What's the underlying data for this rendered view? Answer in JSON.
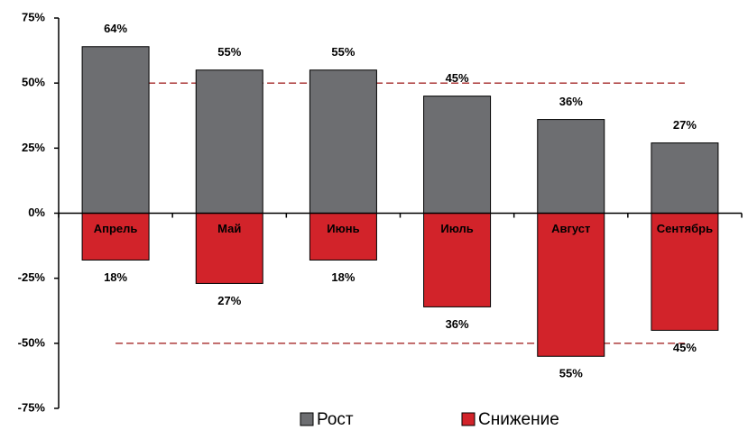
{
  "chart_data": {
    "type": "bar",
    "categories": [
      "Апрель",
      "Май",
      "Июнь",
      "Июль",
      "Август",
      "Сентябрь"
    ],
    "series": [
      {
        "name": "Рост",
        "color": "#6d6e71",
        "values": [
          64,
          55,
          55,
          45,
          36,
          27
        ],
        "value_labels": [
          "64%",
          "55%",
          "55%",
          "45%",
          "36%",
          "27%"
        ]
      },
      {
        "name": "Снижение",
        "color": "#d2232a",
        "values": [
          -18,
          -27,
          -18,
          -36,
          -55,
          -45
        ],
        "value_labels": [
          "18%",
          "27%",
          "18%",
          "36%",
          "55%",
          "45%"
        ]
      }
    ],
    "ylim": [
      -75,
      75
    ],
    "yticks": [
      {
        "value": -75,
        "label": "-75%"
      },
      {
        "value": -50,
        "label": "-50%"
      },
      {
        "value": -25,
        "label": "-25%"
      },
      {
        "value": 0,
        "label": "0%"
      },
      {
        "value": 25,
        "label": "25%"
      },
      {
        "value": 50,
        "label": "50%"
      },
      {
        "value": 75,
        "label": "75%"
      }
    ],
    "reference_lines": [
      {
        "value": 50,
        "color": "#a52a2a"
      },
      {
        "value": -50,
        "color": "#a52a2a"
      }
    ],
    "legend": "bottom"
  }
}
